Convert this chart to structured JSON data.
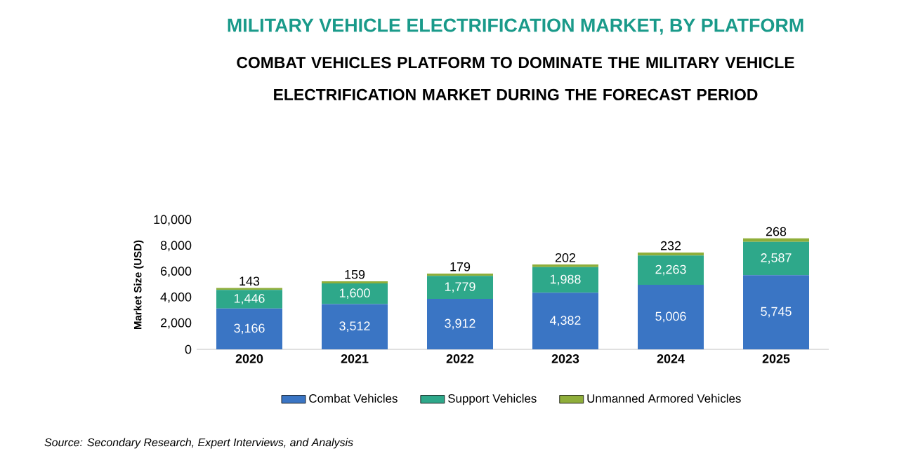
{
  "chart_data": {
    "type": "bar",
    "stacked": true,
    "title": "MILITARY VEHICLE ELECTRIFICATION MARKET, BY PLATFORM",
    "subtitle": "COMBAT VEHICLES PLATFORM TO DOMINATE THE MILITARY VEHICLE ELECTRIFICATION MARKET DURING THE FORECAST PERIOD",
    "ylabel": "Market Size (USD)",
    "categories": [
      "2020",
      "2021",
      "2022",
      "2023",
      "2024",
      "2025"
    ],
    "series": [
      {
        "name": "Combat Vehicles",
        "color": "#3a75c4",
        "values": [
          3166,
          3512,
          3912,
          4382,
          5006,
          5745
        ],
        "value_labels": [
          "3,166",
          "3,512",
          "3,912",
          "4,382",
          "5,006",
          "5,745"
        ]
      },
      {
        "name": "Support Vehicles",
        "color": "#2ea88a",
        "values": [
          1446,
          1600,
          1779,
          1988,
          2263,
          2587
        ],
        "value_labels": [
          "1,446",
          "1,600",
          "1,779",
          "1,988",
          "2,263",
          "2,587"
        ]
      },
      {
        "name": "Unmanned Armored Vehicles",
        "color": "#8fae3a",
        "values": [
          143,
          159,
          179,
          202,
          232,
          268
        ],
        "value_labels": [
          "143",
          "159",
          "179",
          "202",
          "232",
          "268"
        ]
      }
    ],
    "ylim": [
      0,
      10000
    ],
    "yticks": [
      0,
      {
        "value": 2000,
        "label": "2,000"
      },
      {
        "value": 4000,
        "label": "4,000"
      },
      {
        "value": 6000,
        "label": "6,000"
      },
      {
        "value": 8000,
        "label": "8,000"
      },
      {
        "value": 10000,
        "label": "10,000"
      }
    ],
    "legend": "bottom",
    "annotations": [
      "Source: Secondary Research, Expert Interviews, and Analysis"
    ]
  }
}
